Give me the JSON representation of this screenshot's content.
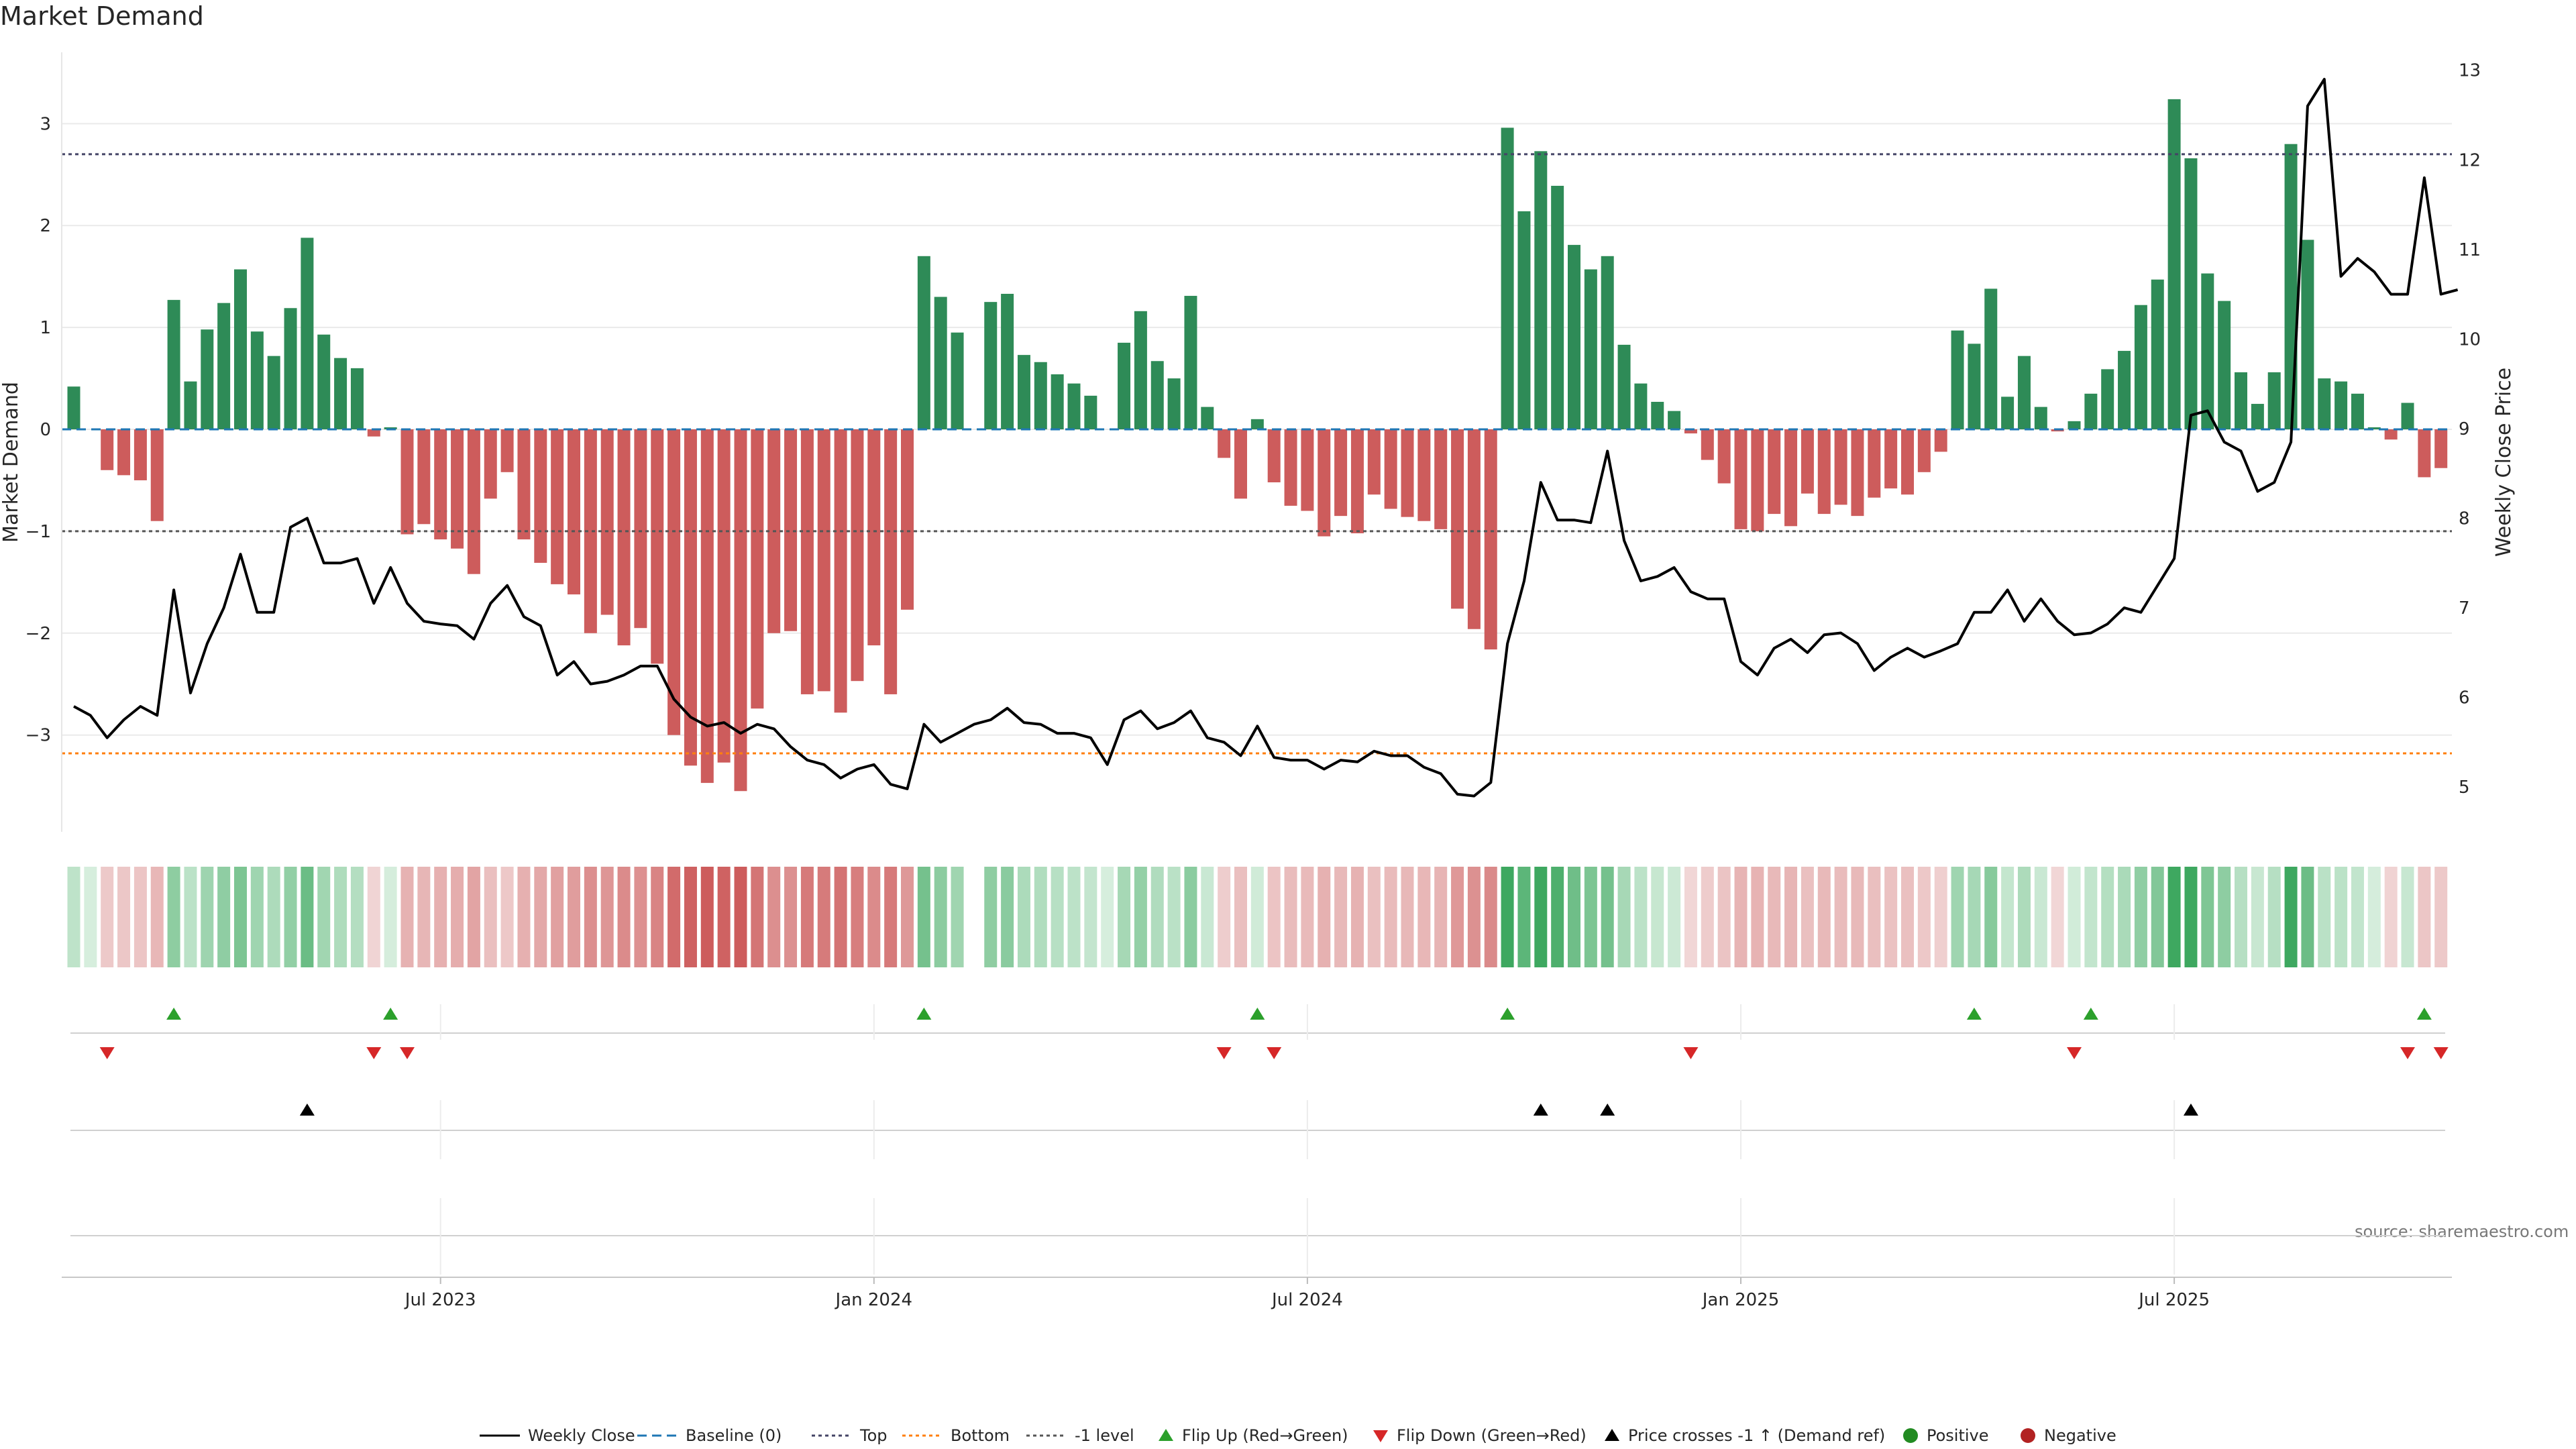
{
  "chart_data": {
    "type": "bar",
    "title": "Market Demand",
    "source": "source: sharemaestro.com",
    "ylabel_left": "Market Demand",
    "ylabel_right": "Weekly Close Price",
    "ylim_left": [
      -3.95,
      3.7
    ],
    "ylim_right": [
      4.5,
      13.2
    ],
    "yticks_left": [
      {
        "v": 3,
        "l": "3"
      },
      {
        "v": 2,
        "l": "2"
      },
      {
        "v": 1,
        "l": "1"
      },
      {
        "v": 0,
        "l": "0"
      },
      {
        "v": -1,
        "l": "−1"
      },
      {
        "v": -2,
        "l": "−2"
      },
      {
        "v": -3,
        "l": "−3"
      }
    ],
    "yticks_right": [
      {
        "v": 13,
        "l": "13"
      },
      {
        "v": 12,
        "l": "12"
      },
      {
        "v": 11,
        "l": "11"
      },
      {
        "v": 10,
        "l": "10"
      },
      {
        "v": 9,
        "l": "9"
      },
      {
        "v": 8,
        "l": "8"
      },
      {
        "v": 7,
        "l": "7"
      },
      {
        "v": 6,
        "l": "6"
      },
      {
        "v": 5,
        "l": "5"
      }
    ],
    "xticks": [
      {
        "week": 22,
        "label": "Jul 2023"
      },
      {
        "week": 48,
        "label": "Jan 2024"
      },
      {
        "week": 74,
        "label": "Jul 2024"
      },
      {
        "week": 100,
        "label": "Jan 2025"
      },
      {
        "week": 126,
        "label": "Jul 2025"
      }
    ],
    "grid": true,
    "legend_position": "bottom-center",
    "reference_lines": [
      {
        "name": "Baseline (0)",
        "value": 0,
        "color": "#1f77b4",
        "style": "dashed"
      },
      {
        "name": "Top",
        "value": 2.7,
        "color": "#444466",
        "style": "dotted"
      },
      {
        "name": "Bottom",
        "value": -3.18,
        "color": "#ff7f0e",
        "style": "dotted"
      },
      {
        "name": "-1 level",
        "value": -1,
        "color": "#555555",
        "style": "dotted"
      }
    ],
    "colors": {
      "positive": "#2e8b57",
      "negative": "#cd5c5c",
      "price": "#000000",
      "flip_up": "#2ca02c",
      "flip_down": "#d62728",
      "cross": "#000000",
      "legend_positive": "#228b22",
      "legend_negative": "#b22222"
    },
    "series": [
      {
        "name": "Market Demand",
        "type": "bar",
        "values": [
          0.42,
          0,
          -0.4,
          -0.45,
          -0.5,
          -0.9,
          1.27,
          0.47,
          0.98,
          1.24,
          1.57,
          0.96,
          0.72,
          1.19,
          1.88,
          0.93,
          0.7,
          0.6,
          -0.07,
          0.02,
          -1.03,
          -0.93,
          -1.08,
          -1.17,
          -1.42,
          -0.68,
          -0.42,
          -1.08,
          -1.31,
          -1.52,
          -1.62,
          -2.0,
          -1.82,
          -2.12,
          -1.95,
          -2.3,
          -3.0,
          -3.3,
          -3.47,
          -3.27,
          -3.55,
          -2.74,
          -2.0,
          -1.98,
          -2.6,
          -2.57,
          -2.78,
          -2.47,
          -2.12,
          -2.6,
          -1.77,
          1.7,
          1.3,
          0.95,
          null,
          1.25,
          1.33,
          0.73,
          0.66,
          0.54,
          0.45,
          0.33,
          0,
          0.85,
          1.16,
          0.67,
          0.5,
          1.31,
          0.22,
          -0.28,
          -0.68,
          0.1,
          -0.52,
          -0.75,
          -0.8,
          -1.05,
          -0.85,
          -1.02,
          -0.64,
          -0.78,
          -0.86,
          -0.9,
          -0.98,
          -1.76,
          -1.96,
          -2.16,
          2.96,
          2.14,
          2.73,
          2.39,
          1.81,
          1.57,
          1.7,
          0.83,
          0.45,
          0.27,
          0.18,
          -0.04,
          -0.3,
          -0.53,
          -0.98,
          -1.0,
          -0.83,
          -0.95,
          -0.63,
          -0.83,
          -0.74,
          -0.85,
          -0.67,
          -0.58,
          -0.64,
          -0.42,
          -0.22,
          0.97,
          0.84,
          1.38,
          0.32,
          0.72,
          0.22,
          -0.02,
          0.08,
          0.35,
          0.59,
          0.77,
          1.22,
          1.47,
          3.24,
          2.66,
          1.53,
          1.26,
          0.56,
          0.25,
          0.56,
          2.8,
          1.86,
          0.5,
          0.47,
          0.35,
          0.02,
          -0.1,
          0.26,
          -0.47,
          -0.38
        ]
      },
      {
        "name": "Weekly Close",
        "type": "line",
        "axis": "right",
        "values": [
          5.9,
          5.8,
          5.55,
          5.75,
          5.9,
          5.8,
          7.2,
          6.05,
          6.6,
          7.0,
          7.6,
          6.95,
          6.95,
          7.9,
          8.0,
          7.5,
          7.5,
          7.55,
          7.05,
          7.45,
          7.05,
          6.85,
          6.82,
          6.8,
          6.65,
          7.05,
          7.25,
          6.9,
          6.8,
          6.25,
          6.4,
          6.15,
          6.18,
          6.25,
          6.35,
          6.35,
          5.98,
          5.78,
          5.68,
          5.72,
          5.6,
          5.7,
          5.65,
          5.45,
          5.3,
          5.25,
          5.1,
          5.2,
          5.25,
          5.03,
          4.98,
          5.7,
          5.5,
          5.6,
          5.7,
          5.75,
          5.88,
          5.72,
          5.7,
          5.6,
          5.6,
          5.55,
          5.25,
          5.75,
          5.85,
          5.65,
          5.72,
          5.85,
          5.55,
          5.5,
          5.35,
          5.68,
          5.33,
          5.3,
          5.3,
          5.2,
          5.3,
          5.28,
          5.4,
          5.35,
          5.35,
          5.22,
          5.15,
          4.92,
          4.9,
          5.05,
          6.6,
          7.3,
          8.4,
          7.98,
          7.98,
          7.95,
          8.75,
          7.75,
          7.3,
          7.35,
          7.45,
          7.18,
          7.1,
          7.1,
          6.4,
          6.25,
          6.55,
          6.65,
          6.5,
          6.7,
          6.72,
          6.6,
          6.3,
          6.45,
          6.55,
          6.45,
          6.52,
          6.6,
          6.95,
          6.95,
          7.2,
          6.85,
          7.1,
          6.85,
          6.7,
          6.72,
          6.82,
          7.0,
          6.95,
          7.25,
          7.55,
          9.15,
          9.2,
          8.85,
          8.75,
          8.3,
          8.4,
          8.85,
          12.6,
          12.9,
          10.7,
          10.9,
          10.75,
          10.5,
          10.5,
          11.8,
          10.5,
          10.55
        ]
      }
    ],
    "heat_gaps": [
      54
    ],
    "markers": {
      "flip_up_weeks": [
        6,
        19,
        51,
        71,
        86,
        114,
        121,
        141
      ],
      "flip_down_weeks": [
        2,
        18,
        20,
        69,
        72,
        97,
        120,
        140,
        142
      ],
      "cross_weeks": [
        14,
        88,
        92,
        127
      ]
    },
    "legend": [
      {
        "label": "Weekly Close",
        "kind": "line-solid",
        "color": "#000000"
      },
      {
        "label": "Baseline (0)",
        "kind": "line-dashed",
        "color": "#1f77b4"
      },
      {
        "label": "Top",
        "kind": "line-dotted",
        "color": "#444466"
      },
      {
        "label": "Bottom",
        "kind": "line-dotted",
        "color": "#ff7f0e"
      },
      {
        "label": "-1 level",
        "kind": "line-dotted",
        "color": "#555555"
      },
      {
        "label": "Flip Up (Red→Green)",
        "kind": "triangle-up",
        "color": "#2ca02c"
      },
      {
        "label": "Flip Down (Green→Red)",
        "kind": "triangle-down",
        "color": "#d62728"
      },
      {
        "label": "Price crosses -1 ↑ (Demand ref)",
        "kind": "triangle-up",
        "color": "#000000"
      },
      {
        "label": "Positive",
        "kind": "circle",
        "color": "#228b22"
      },
      {
        "label": "Negative",
        "kind": "circle",
        "color": "#b22222"
      }
    ]
  }
}
